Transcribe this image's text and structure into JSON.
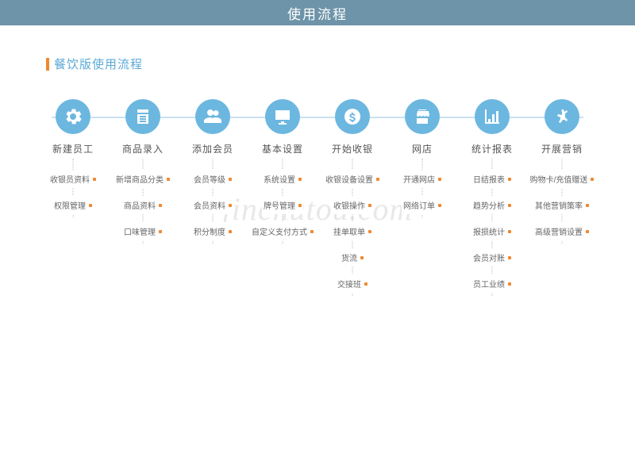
{
  "header": {
    "title": "使用流程"
  },
  "subtitle": {
    "text": "餐饮版使用流程",
    "bar_color": "#f08830",
    "text_color": "#5aa9d6"
  },
  "watermark": "jinchutou.com",
  "flow": {
    "line_color": "#c9e1ef",
    "circle_bg": "#6cb7e0",
    "circle_fg": "#ffffff",
    "subitem_dot_color": "#f08830",
    "step_title_color": "#555555",
    "subitem_text_color": "#666666",
    "vline_color": "#bbbbbb"
  },
  "steps": [
    {
      "icon": "gear",
      "title": "新建员工",
      "subitems": [
        "收银员资料",
        "权限管理"
      ]
    },
    {
      "icon": "clipboard",
      "title": "商品录入",
      "subitems": [
        "新增商品分类",
        "商品资料",
        "口味管理"
      ]
    },
    {
      "icon": "users",
      "title": "添加会员",
      "subitems": [
        "会员等级",
        "会员资料",
        "积分制度"
      ]
    },
    {
      "icon": "monitor",
      "title": "基本设置",
      "subitems": [
        "系统设置",
        "牌号管理",
        "自定义支付方式"
      ]
    },
    {
      "icon": "dollar",
      "title": "开始收银",
      "subitems": [
        "收银设备设置",
        "收银操作",
        "挂单取单",
        "货流",
        "交接班"
      ]
    },
    {
      "icon": "shop",
      "title": "网店",
      "subitems": [
        "开通网店",
        "网络订单"
      ]
    },
    {
      "icon": "chart",
      "title": "统计报表",
      "subitems": [
        "日结报表",
        "趋势分析",
        "报损统计",
        "会员对账",
        "员工业绩"
      ]
    },
    {
      "icon": "hand",
      "title": "开展营销",
      "subitems": [
        "购物卡/充值赠送",
        "其他营销策率",
        "高级营销设置"
      ]
    }
  ]
}
